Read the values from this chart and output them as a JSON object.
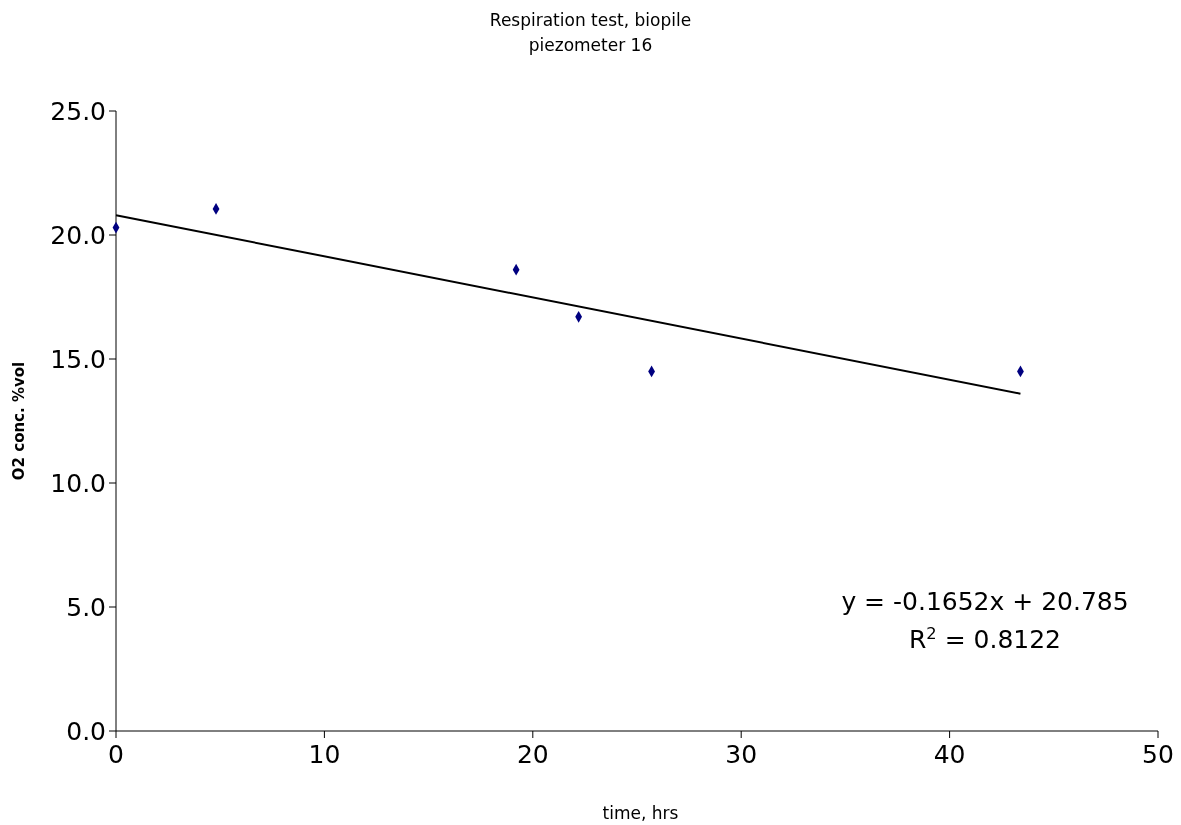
{
  "chart_data": {
    "type": "scatter",
    "title": "Respiration test, biopile",
    "subtitle": "piezometer 16",
    "xlabel": "time, hrs",
    "ylabel": "O2 conc. %vol",
    "x": [
      0,
      4.8,
      19.2,
      22.2,
      25.7,
      43.4
    ],
    "series": [
      {
        "color": "#000080",
        "marker": "diamond",
        "values": [
          20.3,
          21.05,
          18.6,
          16.7,
          14.5,
          14.5
        ]
      },
      {
        "type": "line",
        "color": "#000000",
        "x": [
          0,
          43.4
        ],
        "values": [
          20.8,
          13.6
        ]
      }
    ],
    "xlim": [
      0,
      50
    ],
    "xticks": [
      0,
      10,
      20,
      30,
      40,
      50
    ],
    "ylim": [
      0,
      25
    ],
    "yticks": [
      {
        "value": 0,
        "label": "0.0"
      },
      {
        "value": 5,
        "label": "5.0"
      },
      {
        "value": 10,
        "label": "10.0"
      },
      {
        "value": 15,
        "label": "15.0"
      },
      {
        "value": 20,
        "label": "20.0"
      },
      {
        "value": 25,
        "label": "25.0"
      }
    ],
    "annotations": [
      "y = -0.1652x + 20.785",
      "R$^{2}$ = 0.8122"
    ],
    "grid": false
  }
}
